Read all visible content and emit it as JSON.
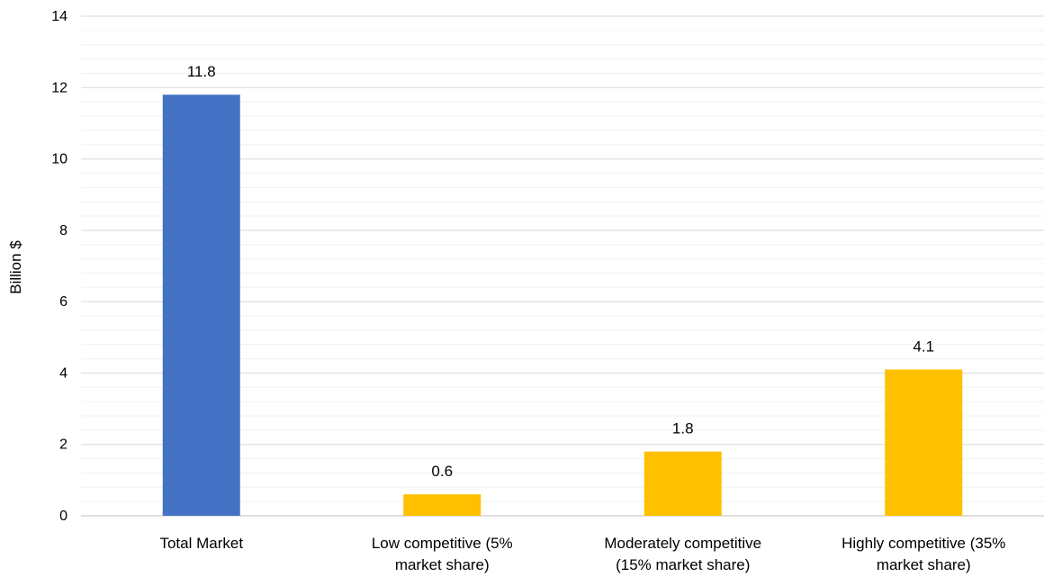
{
  "chart_data": {
    "type": "bar",
    "categories": [
      [
        "Total Market"
      ],
      [
        "Low competitive  (5%",
        "market share)"
      ],
      [
        "Moderately competitive",
        "(15% market share)"
      ],
      [
        "Highly competitive (35%",
        "market share)"
      ]
    ],
    "values": [
      11.8,
      0.6,
      1.8,
      4.1
    ],
    "data_labels": [
      "11.8",
      "0.6",
      "1.8",
      "4.1"
    ],
    "bar_colors": [
      "#4472C4",
      "#FFC000",
      "#FFC000",
      "#FFC000"
    ],
    "ylabel": "Billion $",
    "ylim": [
      0,
      14
    ],
    "yticks": [
      "0",
      "2",
      "4",
      "6",
      "8",
      "10",
      "12",
      "14"
    ],
    "ytick_step": 2,
    "minor_step": 0.4,
    "grid": true,
    "legend": "none"
  }
}
